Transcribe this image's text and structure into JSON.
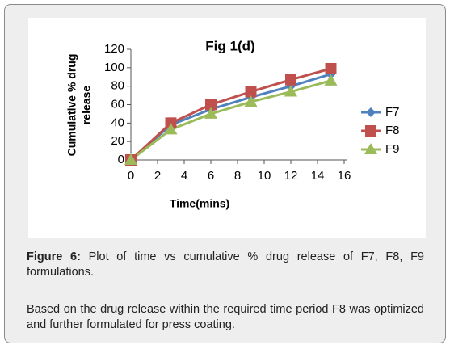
{
  "chart_data": {
    "type": "line",
    "title": "Fig 1(d)",
    "xlabel": "Time(mins)",
    "ylabel": [
      "Cumulative % drug",
      "release"
    ],
    "x": [
      0,
      3,
      6,
      9,
      12,
      15
    ],
    "series": [
      {
        "name": "F7",
        "color": "#4f81bd",
        "marker": "diamond",
        "values": [
          0,
          38,
          55,
          68,
          80,
          93
        ]
      },
      {
        "name": "F8",
        "color": "#c0504d",
        "marker": "square",
        "values": [
          0,
          40,
          60,
          74,
          87,
          99
        ]
      },
      {
        "name": "F9",
        "color": "#9bbb59",
        "marker": "triangle",
        "values": [
          0,
          33,
          50,
          63,
          74,
          86
        ]
      }
    ],
    "xlim": [
      0,
      16
    ],
    "xticks": [
      0,
      2,
      4,
      6,
      8,
      10,
      12,
      14,
      16
    ],
    "ylim": [
      0,
      120
    ],
    "yticks": [
      0,
      20,
      40,
      60,
      80,
      100,
      120
    ],
    "grid": false,
    "legend": "right"
  },
  "caption": {
    "label": "Figure 6:",
    "text": "Plot of time vs cumulative % drug release of F7, F8, F9 formulations."
  },
  "note": "Based on the drug release within the required time period F8 was optimized and further formulated for press coating."
}
